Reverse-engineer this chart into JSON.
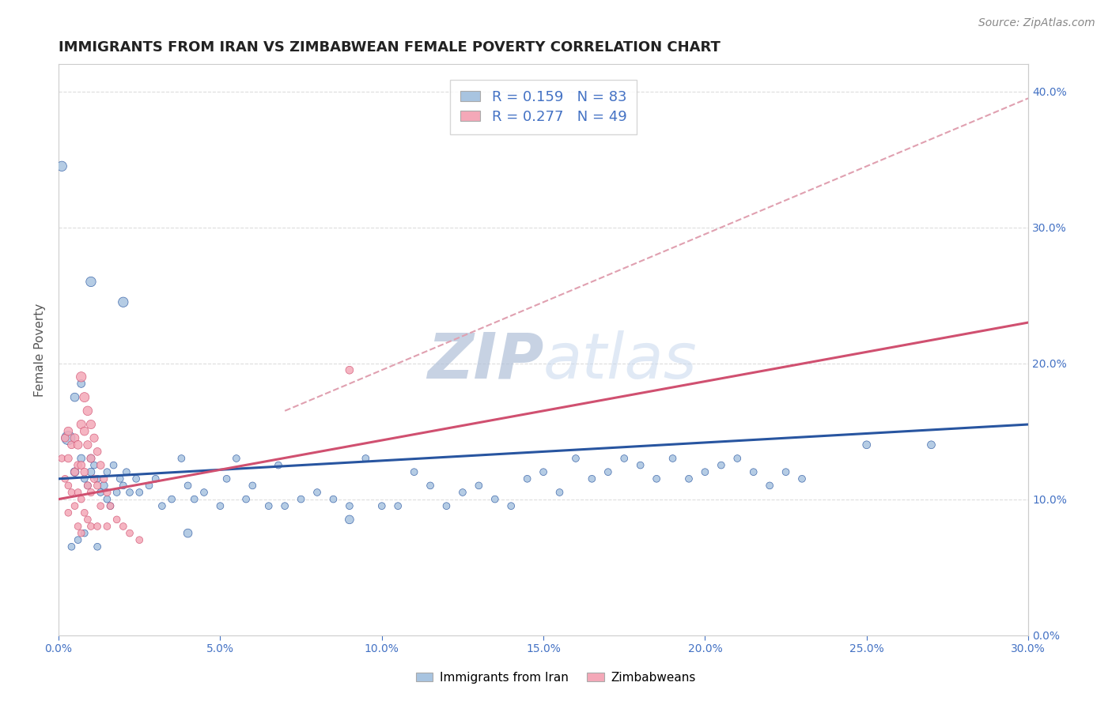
{
  "title": "IMMIGRANTS FROM IRAN VS ZIMBABWEAN FEMALE POVERTY CORRELATION CHART",
  "source": "Source: ZipAtlas.com",
  "ylabel": "Female Poverty",
  "xlim": [
    0.0,
    0.3
  ],
  "ylim": [
    0.0,
    0.42
  ],
  "legend_r1": "R = 0.159   N = 83",
  "legend_r2": "R = 0.277   N = 49",
  "color_blue": "#a8c4e0",
  "color_pink": "#f4a8b8",
  "line_color_blue": "#2855a0",
  "line_color_pink": "#d05070",
  "line_color_dashed": "#e0a0b0",
  "grid_color": "#dddddd",
  "background_color": "#ffffff",
  "title_fontsize": 13,
  "axis_label_fontsize": 11,
  "tick_fontsize": 10,
  "source_fontsize": 10,
  "watermark_color": "#c8d8ee",
  "watermark_fontsize": 58,
  "blue_line_x": [
    0.0,
    0.3
  ],
  "blue_line_y": [
    0.115,
    0.155
  ],
  "pink_line_x": [
    0.0,
    0.3
  ],
  "pink_line_y": [
    0.1,
    0.23
  ],
  "dashed_line_x": [
    0.07,
    0.3
  ],
  "dashed_line_y": [
    0.165,
    0.395
  ],
  "blue_scatter_x": [
    0.005,
    0.005,
    0.007,
    0.007,
    0.008,
    0.009,
    0.01,
    0.01,
    0.011,
    0.012,
    0.013,
    0.014,
    0.015,
    0.015,
    0.016,
    0.017,
    0.018,
    0.019,
    0.02,
    0.021,
    0.022,
    0.024,
    0.025,
    0.028,
    0.03,
    0.032,
    0.035,
    0.038,
    0.04,
    0.042,
    0.045,
    0.05,
    0.052,
    0.055,
    0.058,
    0.06,
    0.065,
    0.068,
    0.07,
    0.075,
    0.08,
    0.085,
    0.09,
    0.095,
    0.1,
    0.105,
    0.11,
    0.115,
    0.12,
    0.125,
    0.13,
    0.135,
    0.14,
    0.145,
    0.15,
    0.155,
    0.16,
    0.165,
    0.17,
    0.175,
    0.18,
    0.185,
    0.19,
    0.195,
    0.2,
    0.205,
    0.21,
    0.215,
    0.22,
    0.225,
    0.23,
    0.25,
    0.27,
    0.003,
    0.001,
    0.004,
    0.006,
    0.008,
    0.012,
    0.01,
    0.02,
    0.04,
    0.09
  ],
  "blue_scatter_y": [
    0.12,
    0.175,
    0.13,
    0.185,
    0.115,
    0.11,
    0.12,
    0.13,
    0.125,
    0.115,
    0.105,
    0.11,
    0.1,
    0.12,
    0.095,
    0.125,
    0.105,
    0.115,
    0.11,
    0.12,
    0.105,
    0.115,
    0.105,
    0.11,
    0.115,
    0.095,
    0.1,
    0.13,
    0.11,
    0.1,
    0.105,
    0.095,
    0.115,
    0.13,
    0.1,
    0.11,
    0.095,
    0.125,
    0.095,
    0.1,
    0.105,
    0.1,
    0.095,
    0.13,
    0.095,
    0.095,
    0.12,
    0.11,
    0.095,
    0.105,
    0.11,
    0.1,
    0.095,
    0.115,
    0.12,
    0.105,
    0.13,
    0.115,
    0.12,
    0.13,
    0.125,
    0.115,
    0.13,
    0.115,
    0.12,
    0.125,
    0.13,
    0.12,
    0.11,
    0.12,
    0.115,
    0.14,
    0.14,
    0.145,
    0.345,
    0.065,
    0.07,
    0.075,
    0.065,
    0.26,
    0.245,
    0.075,
    0.085
  ],
  "blue_scatter_sizes": [
    60,
    60,
    50,
    50,
    40,
    40,
    50,
    50,
    40,
    40,
    40,
    50,
    40,
    40,
    40,
    40,
    40,
    40,
    40,
    40,
    40,
    40,
    40,
    40,
    40,
    40,
    40,
    40,
    40,
    40,
    40,
    40,
    40,
    40,
    40,
    40,
    40,
    40,
    40,
    40,
    40,
    40,
    40,
    40,
    40,
    40,
    40,
    40,
    40,
    40,
    40,
    40,
    40,
    40,
    40,
    40,
    40,
    40,
    40,
    40,
    40,
    40,
    40,
    40,
    40,
    40,
    40,
    40,
    40,
    40,
    40,
    50,
    50,
    150,
    80,
    40,
    40,
    40,
    40,
    80,
    80,
    60,
    60
  ],
  "pink_scatter_x": [
    0.001,
    0.002,
    0.002,
    0.003,
    0.003,
    0.003,
    0.003,
    0.004,
    0.004,
    0.005,
    0.005,
    0.005,
    0.006,
    0.006,
    0.006,
    0.006,
    0.007,
    0.007,
    0.007,
    0.007,
    0.007,
    0.008,
    0.008,
    0.008,
    0.008,
    0.009,
    0.009,
    0.009,
    0.009,
    0.01,
    0.01,
    0.01,
    0.01,
    0.011,
    0.011,
    0.012,
    0.012,
    0.012,
    0.013,
    0.013,
    0.014,
    0.015,
    0.015,
    0.016,
    0.018,
    0.02,
    0.022,
    0.025,
    0.09
  ],
  "pink_scatter_y": [
    0.13,
    0.145,
    0.115,
    0.15,
    0.13,
    0.11,
    0.09,
    0.14,
    0.105,
    0.145,
    0.12,
    0.095,
    0.14,
    0.125,
    0.105,
    0.08,
    0.19,
    0.155,
    0.125,
    0.1,
    0.075,
    0.175,
    0.15,
    0.12,
    0.09,
    0.165,
    0.14,
    0.11,
    0.085,
    0.155,
    0.13,
    0.105,
    0.08,
    0.145,
    0.115,
    0.135,
    0.11,
    0.08,
    0.125,
    0.095,
    0.115,
    0.105,
    0.08,
    0.095,
    0.085,
    0.08,
    0.075,
    0.07,
    0.195
  ],
  "pink_scatter_sizes": [
    40,
    50,
    40,
    60,
    50,
    40,
    40,
    50,
    40,
    60,
    50,
    40,
    60,
    50,
    40,
    40,
    80,
    65,
    50,
    40,
    40,
    75,
    60,
    50,
    40,
    70,
    55,
    45,
    40,
    65,
    55,
    45,
    40,
    55,
    45,
    50,
    45,
    40,
    50,
    40,
    45,
    45,
    40,
    40,
    40,
    40,
    40,
    40,
    50
  ]
}
